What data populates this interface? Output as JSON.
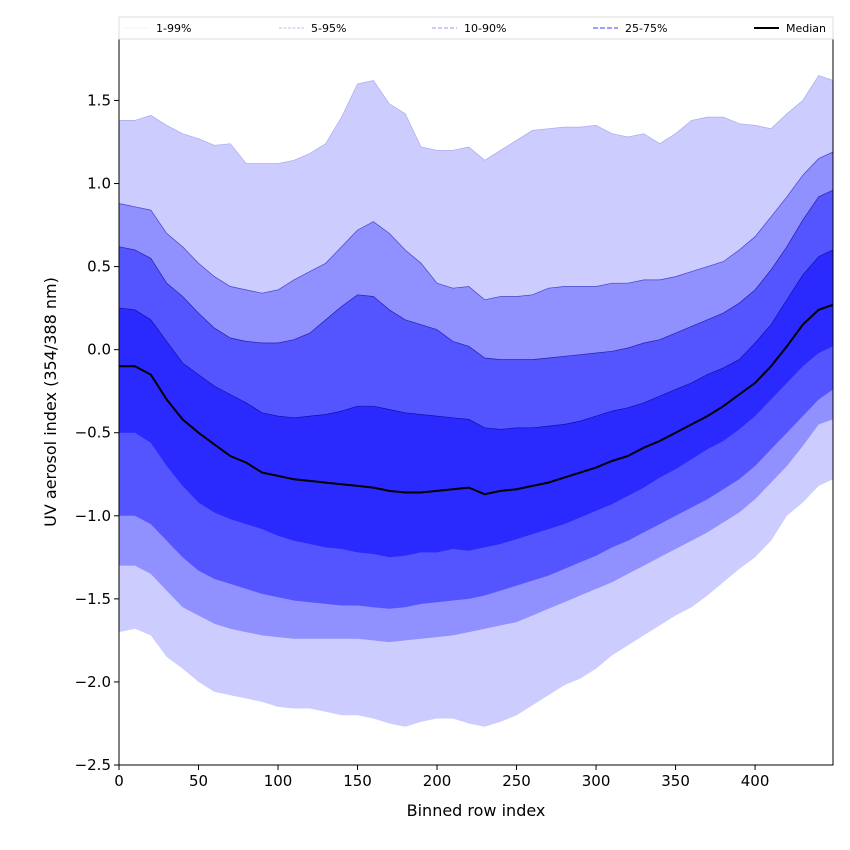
{
  "chart_data": {
    "type": "area",
    "title": "",
    "xlabel": "Binned row index",
    "ylabel": "UV aerosol index (354/388 nm)",
    "xlim": [
      0,
      449
    ],
    "ylim": [
      -2.5,
      1.87
    ],
    "xticks": [
      0,
      50,
      100,
      150,
      200,
      250,
      300,
      350,
      400
    ],
    "yticks": [
      -2.5,
      -2.0,
      -1.5,
      -1.0,
      -0.5,
      0.0,
      0.5,
      1.0,
      1.5
    ],
    "ytick_labels": [
      "−2.5",
      "−2.0",
      "−1.5",
      "−1.0",
      "−0.5",
      "0.0",
      "0.5",
      "1.0",
      "1.5"
    ],
    "grid": false,
    "legend_position": "top (above plot, full width)",
    "legend": [
      {
        "label": "1-99%",
        "color": "#ccccff"
      },
      {
        "label": "5-95%",
        "color": "#9090ff"
      },
      {
        "label": "10-90%",
        "color": "#5555ff"
      },
      {
        "label": "25-75%",
        "color": "#2a2aff"
      },
      {
        "label": "Median",
        "color": "#000000"
      }
    ],
    "x": [
      0,
      10,
      20,
      30,
      40,
      50,
      60,
      70,
      80,
      90,
      100,
      110,
      120,
      130,
      140,
      150,
      160,
      170,
      180,
      190,
      200,
      210,
      220,
      230,
      240,
      250,
      260,
      270,
      280,
      290,
      300,
      310,
      320,
      330,
      340,
      350,
      360,
      370,
      380,
      390,
      400,
      410,
      420,
      430,
      440,
      449
    ],
    "series": [
      {
        "name": "p99",
        "values": [
          1.38,
          1.38,
          1.41,
          1.35,
          1.3,
          1.27,
          1.23,
          1.24,
          1.12,
          1.12,
          1.12,
          1.14,
          1.18,
          1.24,
          1.4,
          1.6,
          1.62,
          1.48,
          1.42,
          1.22,
          1.2,
          1.2,
          1.22,
          1.14,
          1.2,
          1.26,
          1.32,
          1.33,
          1.34,
          1.34,
          1.35,
          1.3,
          1.28,
          1.3,
          1.24,
          1.3,
          1.38,
          1.4,
          1.4,
          1.36,
          1.35,
          1.33,
          1.42,
          1.5,
          1.65,
          1.62
        ]
      },
      {
        "name": "p95",
        "values": [
          0.88,
          0.86,
          0.84,
          0.7,
          0.62,
          0.52,
          0.44,
          0.38,
          0.36,
          0.34,
          0.36,
          0.42,
          0.47,
          0.52,
          0.62,
          0.72,
          0.77,
          0.7,
          0.6,
          0.52,
          0.4,
          0.37,
          0.38,
          0.3,
          0.32,
          0.32,
          0.33,
          0.37,
          0.38,
          0.38,
          0.38,
          0.4,
          0.4,
          0.42,
          0.42,
          0.44,
          0.47,
          0.5,
          0.53,
          0.6,
          0.68,
          0.8,
          0.92,
          1.05,
          1.15,
          1.19
        ]
      },
      {
        "name": "p90",
        "values": [
          0.62,
          0.6,
          0.55,
          0.4,
          0.32,
          0.22,
          0.13,
          0.07,
          0.05,
          0.04,
          0.04,
          0.06,
          0.1,
          0.18,
          0.26,
          0.33,
          0.32,
          0.24,
          0.18,
          0.15,
          0.12,
          0.05,
          0.02,
          -0.05,
          -0.06,
          -0.06,
          -0.06,
          -0.05,
          -0.04,
          -0.03,
          -0.02,
          -0.01,
          0.01,
          0.04,
          0.06,
          0.1,
          0.14,
          0.18,
          0.22,
          0.28,
          0.36,
          0.48,
          0.62,
          0.78,
          0.92,
          0.96
        ]
      },
      {
        "name": "p75",
        "values": [
          0.25,
          0.24,
          0.18,
          0.05,
          -0.08,
          -0.15,
          -0.22,
          -0.27,
          -0.32,
          -0.38,
          -0.4,
          -0.41,
          -0.4,
          -0.39,
          -0.37,
          -0.34,
          -0.34,
          -0.36,
          -0.38,
          -0.39,
          -0.4,
          -0.41,
          -0.42,
          -0.47,
          -0.48,
          -0.47,
          -0.47,
          -0.46,
          -0.45,
          -0.43,
          -0.4,
          -0.37,
          -0.35,
          -0.32,
          -0.28,
          -0.24,
          -0.2,
          -0.15,
          -0.11,
          -0.06,
          0.04,
          0.15,
          0.3,
          0.45,
          0.56,
          0.6
        ]
      },
      {
        "name": "Median",
        "values": [
          -0.1,
          -0.1,
          -0.15,
          -0.3,
          -0.42,
          -0.5,
          -0.57,
          -0.64,
          -0.68,
          -0.74,
          -0.76,
          -0.78,
          -0.79,
          -0.8,
          -0.81,
          -0.82,
          -0.83,
          -0.85,
          -0.86,
          -0.86,
          -0.85,
          -0.84,
          -0.83,
          -0.87,
          -0.85,
          -0.84,
          -0.82,
          -0.8,
          -0.77,
          -0.74,
          -0.71,
          -0.67,
          -0.64,
          -0.59,
          -0.55,
          -0.5,
          -0.45,
          -0.4,
          -0.34,
          -0.27,
          -0.2,
          -0.1,
          0.02,
          0.15,
          0.24,
          0.27
        ]
      },
      {
        "name": "p25",
        "values": [
          -0.5,
          -0.5,
          -0.56,
          -0.7,
          -0.82,
          -0.92,
          -0.98,
          -1.02,
          -1.05,
          -1.08,
          -1.12,
          -1.15,
          -1.17,
          -1.19,
          -1.2,
          -1.22,
          -1.23,
          -1.25,
          -1.24,
          -1.22,
          -1.22,
          -1.2,
          -1.21,
          -1.19,
          -1.17,
          -1.14,
          -1.11,
          -1.08,
          -1.05,
          -1.01,
          -0.97,
          -0.93,
          -0.88,
          -0.83,
          -0.77,
          -0.72,
          -0.66,
          -0.6,
          -0.55,
          -0.48,
          -0.4,
          -0.3,
          -0.2,
          -0.1,
          -0.02,
          0.02
        ]
      },
      {
        "name": "p10",
        "values": [
          -1.0,
          -1.0,
          -1.05,
          -1.15,
          -1.25,
          -1.33,
          -1.38,
          -1.41,
          -1.44,
          -1.47,
          -1.49,
          -1.51,
          -1.52,
          -1.53,
          -1.54,
          -1.54,
          -1.55,
          -1.56,
          -1.55,
          -1.53,
          -1.52,
          -1.51,
          -1.5,
          -1.48,
          -1.45,
          -1.42,
          -1.39,
          -1.36,
          -1.32,
          -1.28,
          -1.24,
          -1.19,
          -1.15,
          -1.1,
          -1.05,
          -1.0,
          -0.95,
          -0.9,
          -0.84,
          -0.78,
          -0.7,
          -0.6,
          -0.5,
          -0.4,
          -0.3,
          -0.24
        ]
      },
      {
        "name": "p5",
        "values": [
          -1.3,
          -1.3,
          -1.35,
          -1.45,
          -1.55,
          -1.6,
          -1.65,
          -1.68,
          -1.7,
          -1.72,
          -1.73,
          -1.74,
          -1.74,
          -1.74,
          -1.74,
          -1.74,
          -1.75,
          -1.76,
          -1.75,
          -1.74,
          -1.73,
          -1.72,
          -1.7,
          -1.68,
          -1.66,
          -1.64,
          -1.6,
          -1.56,
          -1.52,
          -1.48,
          -1.44,
          -1.4,
          -1.35,
          -1.3,
          -1.25,
          -1.2,
          -1.15,
          -1.1,
          -1.04,
          -0.98,
          -0.9,
          -0.8,
          -0.7,
          -0.58,
          -0.45,
          -0.42
        ]
      },
      {
        "name": "p1",
        "values": [
          -1.7,
          -1.68,
          -1.72,
          -1.85,
          -1.92,
          -2.0,
          -2.06,
          -2.08,
          -2.1,
          -2.12,
          -2.15,
          -2.16,
          -2.16,
          -2.18,
          -2.2,
          -2.2,
          -2.22,
          -2.25,
          -2.27,
          -2.24,
          -2.22,
          -2.22,
          -2.25,
          -2.27,
          -2.24,
          -2.2,
          -2.14,
          -2.08,
          -2.02,
          -1.98,
          -1.92,
          -1.84,
          -1.78,
          -1.72,
          -1.66,
          -1.6,
          -1.55,
          -1.48,
          -1.4,
          -1.32,
          -1.25,
          -1.15,
          -1.0,
          -0.92,
          -0.82,
          -0.78
        ]
      }
    ]
  }
}
